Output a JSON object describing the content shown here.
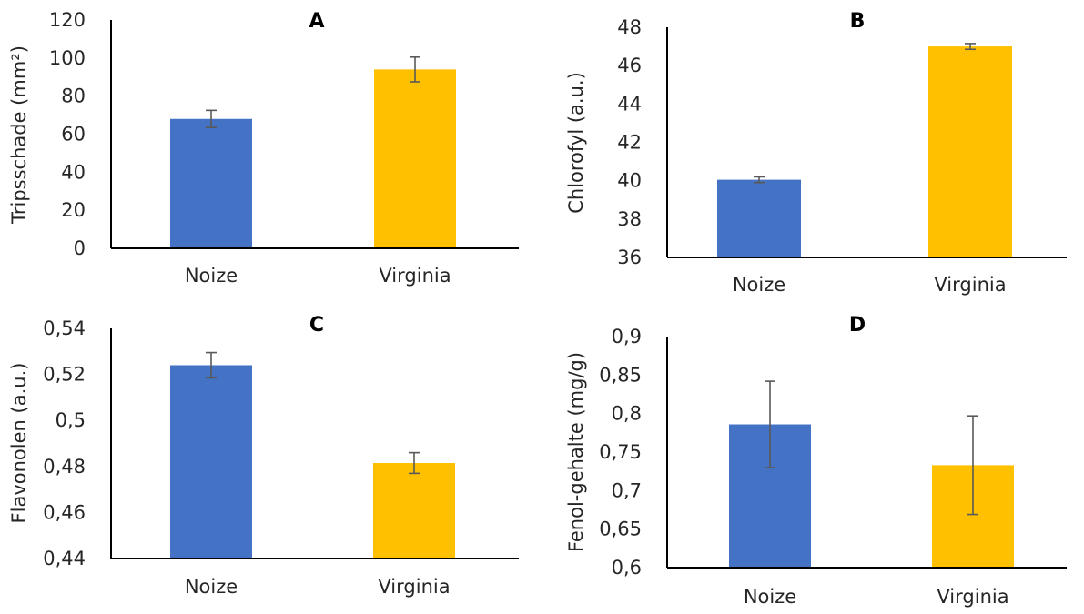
{
  "chart_data": [
    {
      "type": "bar",
      "panel_label": "A",
      "ylabel": "Tripsschade (mm²)",
      "categories": [
        "Noize",
        "Virginia"
      ],
      "values": [
        68,
        94
      ],
      "errors": [
        4.5,
        6.5
      ],
      "colors": [
        "#4472C4",
        "#FFC000"
      ],
      "ylim": [
        0,
        120
      ],
      "yticks": [
        0,
        20,
        40,
        60,
        80,
        100,
        120
      ],
      "ytick_labels": [
        "0",
        "20",
        "40",
        "60",
        "80",
        "100",
        "120"
      ],
      "grid": false
    },
    {
      "type": "bar",
      "panel_label": "B",
      "ylabel": "Chlorofyl (a.u.)",
      "categories": [
        "Noize",
        "Virginia"
      ],
      "values": [
        40.05,
        47.0
      ],
      "errors": [
        0.15,
        0.15
      ],
      "colors": [
        "#4472C4",
        "#FFC000"
      ],
      "ylim": [
        36,
        48
      ],
      "yticks": [
        36,
        38,
        40,
        42,
        44,
        46,
        48
      ],
      "ytick_labels": [
        "36",
        "38",
        "40",
        "42",
        "44",
        "46",
        "48"
      ],
      "grid": false
    },
    {
      "type": "bar",
      "panel_label": "C",
      "ylabel": "Flavonolen (a.u.)",
      "categories": [
        "Noize",
        "Virginia"
      ],
      "values": [
        0.524,
        0.4815
      ],
      "errors": [
        0.0055,
        0.0045
      ],
      "colors": [
        "#4472C4",
        "#FFC000"
      ],
      "ylim": [
        0.44,
        0.54
      ],
      "yticks": [
        0.44,
        0.46,
        0.48,
        0.5,
        0.52,
        0.54
      ],
      "ytick_labels": [
        "0,44",
        "0,46",
        "0,48",
        "0,5",
        "0,52",
        "0,54"
      ],
      "grid": false
    },
    {
      "type": "bar",
      "panel_label": "D",
      "ylabel": "Fenol-gehalte (mg/g)",
      "categories": [
        "Noize",
        "Virginia"
      ],
      "values": [
        0.786,
        0.733
      ],
      "errors": [
        0.056,
        0.064
      ],
      "colors": [
        "#4472C4",
        "#FFC000"
      ],
      "ylim": [
        0.6,
        0.9
      ],
      "yticks": [
        0.6,
        0.65,
        0.7,
        0.75,
        0.8,
        0.85,
        0.9
      ],
      "ytick_labels": [
        "0,6",
        "0,65",
        "0,7",
        "0,75",
        "0,8",
        "0,85",
        "0,9"
      ],
      "grid": false
    }
  ]
}
